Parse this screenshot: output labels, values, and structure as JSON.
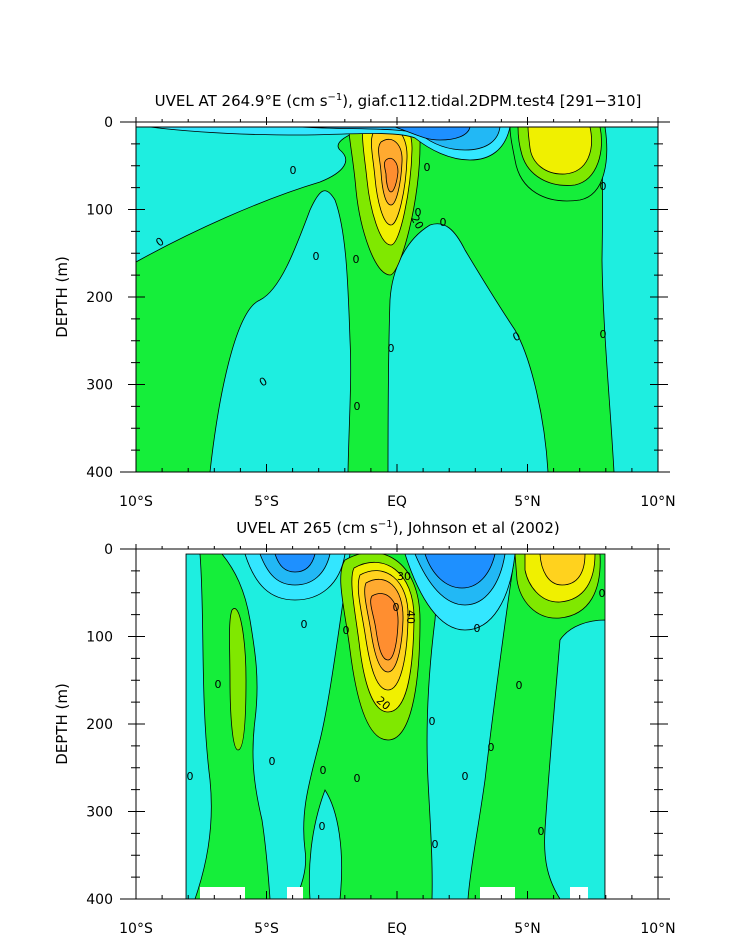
{
  "colors": {
    "c_neg30": "#1e90ff",
    "c_neg20": "#22b8f5",
    "c_neg10": "#33e6ff",
    "c_0": "#1eeee0",
    "c_10": "#15ee3a",
    "c_20": "#80e800",
    "c_30": "#f0f000",
    "c_40": "#ffd21e",
    "c_50": "#ffaa30",
    "c_60": "#ff8e30",
    "line": "#000000"
  },
  "chart_data": [
    {
      "type": "contour",
      "title_main": "UVEL AT 264.9°E (cm s",
      "title_sup": "−1",
      "title_rest": "), giaf.c112.tidal.2DPM.test4 [291−310]",
      "ylabel": "DEPTH (m)",
      "x_ticks": [
        "10°S",
        "5°S",
        "EQ",
        "5°N",
        "10°N"
      ],
      "x_values": [
        -10,
        -5,
        0,
        5,
        10
      ],
      "y_ticks": [
        "0",
        "100",
        "200",
        "300",
        "400"
      ],
      "y_values": [
        0,
        100,
        200,
        300,
        400
      ],
      "xlim": [
        -10,
        10
      ],
      "ylim": [
        0,
        400
      ],
      "contour_labels": [
        "0",
        "0",
        "0",
        "0",
        "0",
        "0",
        "0",
        "0",
        "0",
        "0",
        "0",
        "0",
        "0",
        "20"
      ]
    },
    {
      "type": "contour",
      "title_main": "UVEL AT 265 (cm s",
      "title_sup": "−1",
      "title_rest": "), Johnson et al (2002)",
      "ylabel": "DEPTH (m)",
      "x_ticks": [
        "10°S",
        "5°S",
        "EQ",
        "5°N",
        "10°N"
      ],
      "x_values": [
        -10,
        -5,
        0,
        5,
        10
      ],
      "y_ticks": [
        "0",
        "100",
        "200",
        "300",
        "400"
      ],
      "y_values": [
        0,
        100,
        200,
        300,
        400
      ],
      "xlim": [
        -10,
        10
      ],
      "ylim": [
        0,
        400
      ],
      "data_xrange": [
        -8,
        8
      ],
      "contour_labels": [
        "0",
        "0",
        "0",
        "0",
        "0",
        "0",
        "0",
        "0",
        "0",
        "0",
        "0",
        "0",
        "0",
        "0",
        "0",
        "0",
        "20",
        "30",
        "40",
        "0"
      ]
    }
  ]
}
